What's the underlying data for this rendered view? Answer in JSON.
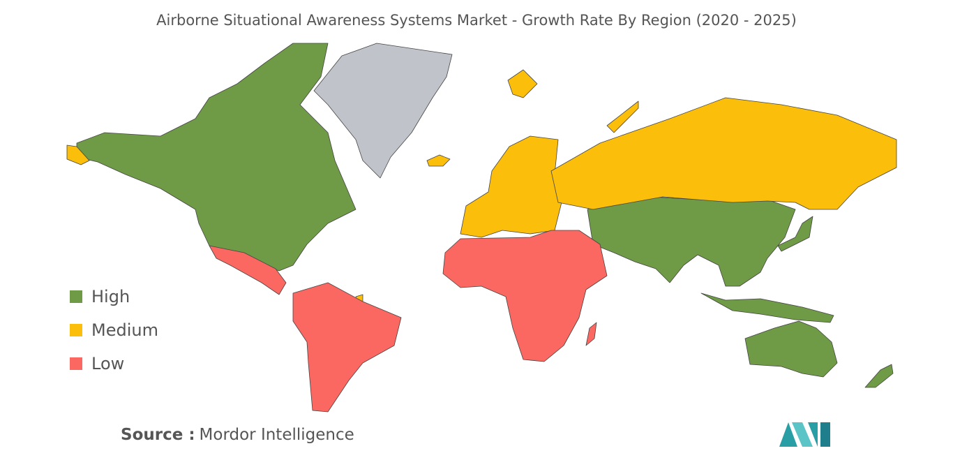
{
  "title": "Airborne Situational Awareness Systems Market - Growth Rate By Region (2020 - 2025)",
  "legend": [
    {
      "label": "High",
      "color": "#6f9a46"
    },
    {
      "label": "Medium",
      "color": "#fbbe0a"
    },
    {
      "label": "Low",
      "color": "#fb6761"
    }
  ],
  "source": {
    "label": "Source :",
    "text": "Mordor Intelligence"
  }
}
